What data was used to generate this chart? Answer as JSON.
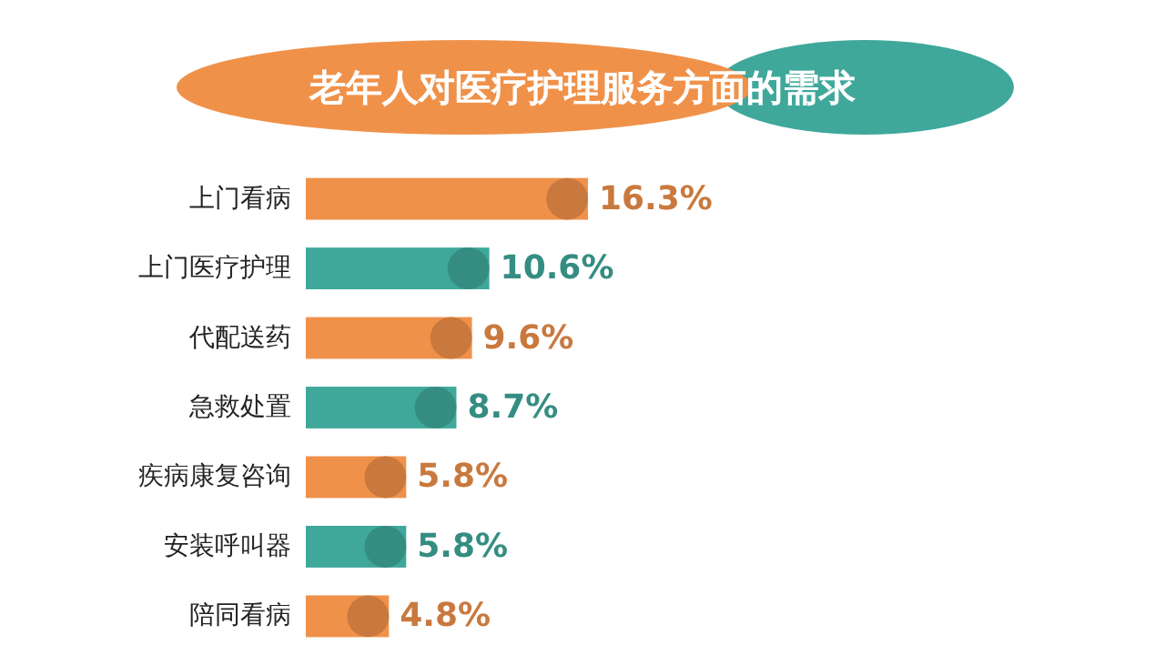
{
  "chart_data": {
    "type": "bar",
    "orientation": "horizontal",
    "title": "老年人对医疗护理服务方面的需求",
    "categories": [
      "上门看病",
      "上门医疗护理",
      "代配送药",
      "急救处置",
      "疾病康复咨询",
      "安装呼叫器",
      "陪同看病"
    ],
    "values": [
      16.3,
      10.6,
      9.6,
      8.7,
      5.8,
      5.8,
      4.8
    ],
    "colors": [
      "#f0914a",
      "#3fa89b",
      "#f0914a",
      "#3fa89b",
      "#f0914a",
      "#3fa89b",
      "#f0914a"
    ],
    "value_labels": [
      "16.3%",
      "10.6%",
      "9.6%",
      "8.7%",
      "5.8%",
      "5.8%",
      "4.8%"
    ]
  }
}
